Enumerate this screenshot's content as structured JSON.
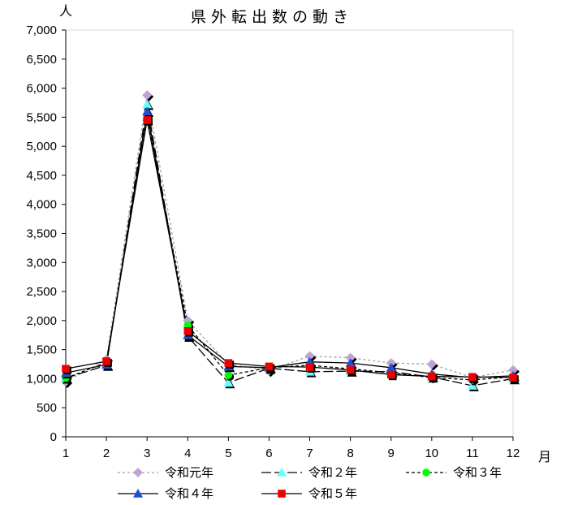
{
  "chart_data": {
    "type": "line",
    "title": "県外転出数の動き",
    "ylabel": "人",
    "xlabel": "月",
    "categories": [
      "1",
      "2",
      "3",
      "4",
      "5",
      "6",
      "7",
      "8",
      "9",
      "10",
      "11",
      "12"
    ],
    "ylim": [
      0,
      7000
    ],
    "yticks": [
      "0",
      "500",
      "1,000",
      "1,500",
      "2,000",
      "2,500",
      "3,000",
      "3,500",
      "4,000",
      "4,500",
      "5,000",
      "5,500",
      "6,000",
      "6,500",
      "7,000"
    ],
    "ytick_values": [
      0,
      500,
      1000,
      1500,
      2000,
      2500,
      3000,
      3500,
      4000,
      4500,
      5000,
      5500,
      6000,
      6500,
      7000
    ],
    "grid": false,
    "legend_position": "bottom",
    "series": [
      {
        "name": "令和元年",
        "values": [
          950,
          1330,
          5880,
          2000,
          1250,
          1140,
          1390,
          1360,
          1270,
          1250,
          1020,
          1150
        ],
        "color": "#bfa3d6",
        "line": "#a0a0a0",
        "dash": "3,3",
        "marker": "diamond"
      },
      {
        "name": "令和２年",
        "values": [
          1010,
          1230,
          5720,
          1730,
          930,
          1180,
          1120,
          1130,
          1120,
          1030,
          880,
          1000
        ],
        "color": "#66ffff",
        "line": "#000000",
        "dash": "12,4",
        "marker": "triangle"
      },
      {
        "name": "令和３年",
        "values": [
          1010,
          1280,
          5500,
          1920,
          1060,
          1190,
          1230,
          1170,
          1100,
          1020,
          980,
          1030
        ],
        "color": "#00ff00",
        "line": "#000000",
        "dash": "4,3",
        "marker": "circle"
      },
      {
        "name": "令和４年",
        "values": [
          1100,
          1240,
          5600,
          1750,
          1210,
          1190,
          1290,
          1270,
          1190,
          1080,
          1020,
          1050
        ],
        "color": "#1f4fd6",
        "line": "#000000",
        "dash": "",
        "marker": "triangle"
      },
      {
        "name": "令和５年",
        "values": [
          1170,
          1300,
          5450,
          1820,
          1270,
          1210,
          1200,
          1150,
          1070,
          1040,
          1030,
          1020
        ],
        "color": "#ee0000",
        "line": "#000000",
        "dash": "",
        "marker": "square"
      }
    ]
  }
}
